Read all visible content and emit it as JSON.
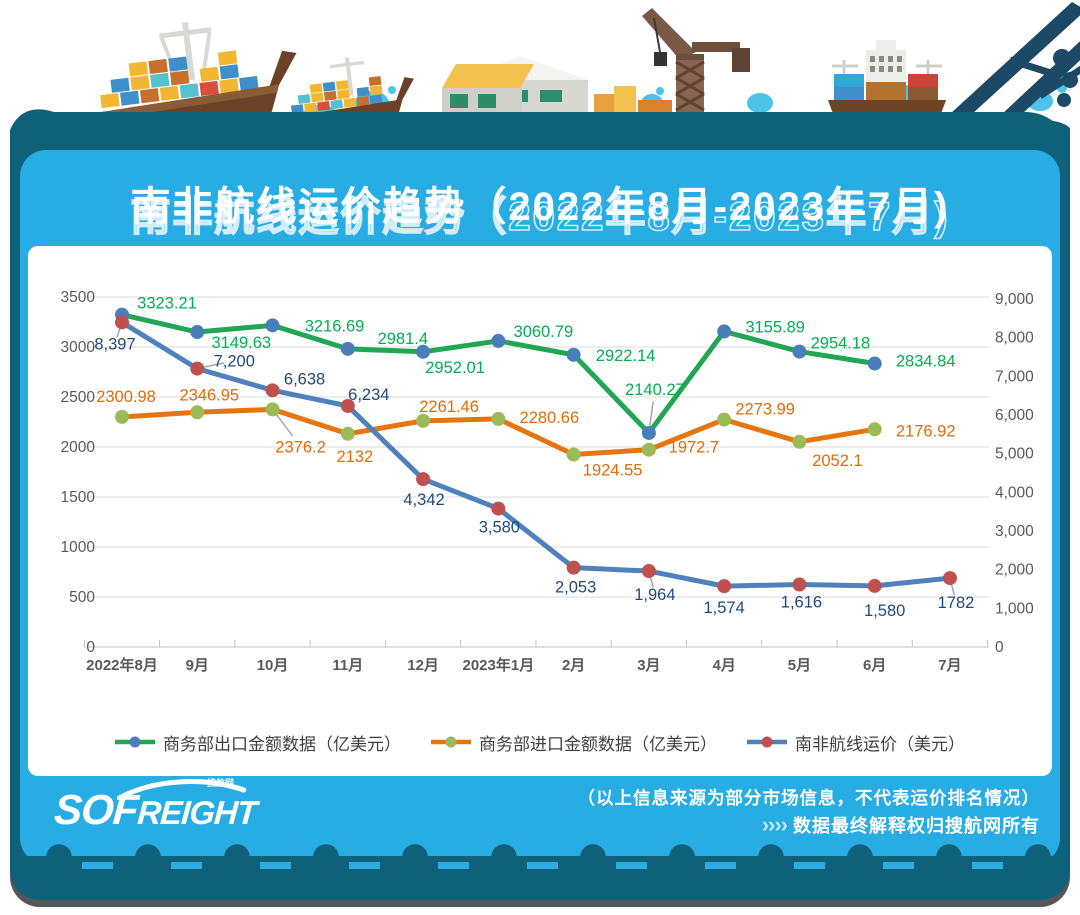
{
  "title": "南非航线运价趋势（2022年8月-2023年7月)",
  "chart_data": {
    "type": "line",
    "categories": [
      "2022年8月",
      "9月",
      "10月",
      "11月",
      "12月",
      "2023年1月",
      "2月",
      "3月",
      "4月",
      "5月",
      "6月",
      "7月"
    ],
    "series": [
      {
        "name": "商务部出口金额数据（亿美元）",
        "axis": "left",
        "color": "#21A653",
        "marker_color": "#4A7EBB",
        "label_color": "#00B050",
        "values": [
          3323.21,
          3149.63,
          3216.69,
          2981.4,
          2952.01,
          3060.79,
          2922.14,
          2140.27,
          3155.89,
          2954.18,
          2834.84
        ],
        "labels": [
          "3323.21",
          "3149.63",
          "3216.69",
          "2981.4",
          "2952.01",
          "3060.79",
          "2922.14",
          "2140.27",
          "3155.89",
          "2954.18",
          "2834.84"
        ]
      },
      {
        "name": "商务部进口金额数据（亿美元）",
        "axis": "left",
        "color": "#E8740E",
        "marker_color": "#9BBB59",
        "label_color": "#E26B0A",
        "values": [
          2300.98,
          2346.95,
          2376.2,
          2132,
          2261.46,
          2280.66,
          1924.55,
          1972.7,
          2273.99,
          2052.1,
          2176.92
        ],
        "labels": [
          "2300.98",
          "2346.95",
          "2376.2",
          "2132",
          "2261.46",
          "2280.66",
          "1924.55",
          "1972.7",
          "2273.99",
          "2052.1",
          "2176.92"
        ]
      },
      {
        "name": "南非航线运价（美元）",
        "axis": "right",
        "color": "#4F81BD",
        "marker_color": "#C0504D",
        "label_color": "#1F497D",
        "values": [
          8397,
          7200,
          6638,
          6234,
          4342,
          3580,
          2053,
          1964,
          1574,
          1616,
          1580,
          1782
        ],
        "labels": [
          "8,397",
          "7,200",
          "6,638",
          "6,234",
          "4,342",
          "3,580",
          "2,053",
          "1,964",
          "1,574",
          "1,616",
          "1,580",
          "1782"
        ]
      }
    ],
    "left_axis": {
      "min": 0,
      "max": 3500,
      "step": 500,
      "ticks": [
        "3500",
        "3000",
        "2500",
        "2000",
        "1500",
        "1000",
        "500",
        "0"
      ]
    },
    "right_axis": {
      "min": 0,
      "max": 9000,
      "step": 1000,
      "ticks": [
        "9,000",
        "8,000",
        "7,000",
        "6,000",
        "5,000",
        "4,000",
        "3,000",
        "2,000",
        "1,000",
        "0"
      ]
    },
    "grid": true,
    "legend_position": "bottom"
  },
  "footer": {
    "line1": "（以上信息来源为部分市场信息，不代表运价排名情况）",
    "chevrons": "››››",
    "line2": "数据最终解释权归搜航网所有"
  },
  "logo": {
    "tiny": "WWW.SOFREIGHT.COM",
    "tiny2": "搜航网",
    "part1": "SOF",
    "part2": "REIGHT"
  },
  "colors": {
    "card_blue": "#27ACE3",
    "card_teal": "#0F6179",
    "panel": "#FFFFFF",
    "gridline": "#D9D9D9",
    "axis_line": "#BFBFBF",
    "tick_text": "#595959",
    "legend_text": "#3F3F3F"
  }
}
